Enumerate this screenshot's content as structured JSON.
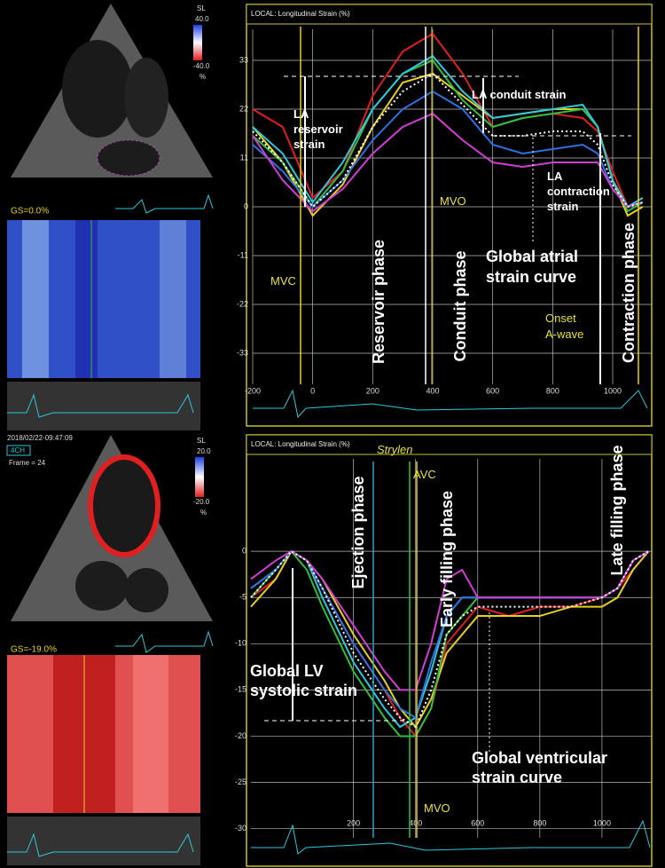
{
  "chart_data": [
    {
      "type": "line",
      "header": "LOCAL: Longitudinal Strain (%)",
      "x": [
        -200,
        -100,
        0,
        100,
        200,
        300,
        400,
        500,
        600,
        700,
        800,
        900,
        950,
        1000,
        1050,
        1100
      ],
      "series": [
        {
          "color": "#e02020",
          "values": [
            22,
            18,
            2,
            8,
            25,
            35,
            39,
            30,
            18,
            20,
            21,
            20,
            17,
            8,
            0,
            2
          ]
        },
        {
          "color": "#e8d020",
          "values": [
            18,
            10,
            -2,
            5,
            18,
            28,
            30,
            25,
            20,
            21,
            22,
            22,
            18,
            6,
            -2,
            0
          ]
        },
        {
          "color": "#30c040",
          "values": [
            16,
            10,
            0,
            8,
            22,
            30,
            33,
            24,
            18,
            20,
            21,
            22,
            18,
            6,
            -1,
            1
          ]
        },
        {
          "color": "#30c8d8",
          "values": [
            18,
            12,
            1,
            10,
            22,
            30,
            34,
            26,
            20,
            21,
            22,
            23,
            18,
            6,
            0,
            2
          ]
        },
        {
          "color": "#3070e0",
          "values": [
            14,
            8,
            0,
            6,
            15,
            22,
            26,
            22,
            14,
            12,
            13,
            14,
            12,
            4,
            0,
            1
          ]
        },
        {
          "color": "#d040d0",
          "values": [
            16,
            6,
            -1,
            4,
            12,
            18,
            21,
            15,
            10,
            9,
            10,
            10,
            10,
            4,
            0,
            1
          ]
        },
        {
          "color": "#ffffff",
          "line_style": "dotted",
          "values": [
            17,
            10,
            0,
            6,
            18,
            26,
            30,
            23,
            16,
            16,
            17,
            17,
            14,
            5,
            0,
            1
          ]
        }
      ],
      "xlim": [
        -200,
        1130
      ],
      "ylim": [
        -40,
        40
      ],
      "xticks": [
        -200,
        0,
        200,
        400,
        600,
        800,
        1000
      ],
      "yticks": [
        33,
        22,
        11,
        0,
        -11,
        -22,
        -33
      ],
      "grid": true,
      "annotations": [
        [
          "LA",
          "reservoir",
          "strain"
        ],
        [
          "LA conduit strain"
        ],
        [
          "LA",
          "contraction",
          "strain"
        ],
        [
          "Global atrial",
          "strain curve"
        ],
        [
          "MVC"
        ],
        [
          "MVO"
        ],
        [
          "Onset",
          "A-wave"
        ],
        [
          "Reservoir phase"
        ],
        [
          "Conduit phase"
        ],
        [
          "Contraction phase"
        ]
      ]
    },
    {
      "type": "line",
      "header": "LOCAL: Longitudinal Strain (%)",
      "x": [
        -130,
        -50,
        0,
        50,
        100,
        200,
        300,
        350,
        400,
        450,
        500,
        550,
        600,
        700,
        800,
        900,
        1000,
        1050,
        1100,
        1150
      ],
      "series": [
        {
          "color": "#e02020",
          "values": [
            -5,
            -3,
            0,
            -1,
            -4,
            -10,
            -15,
            -18,
            -20,
            -17,
            -10,
            -8,
            -6,
            -7,
            -6,
            -6,
            -5,
            -4,
            -2,
            0
          ]
        },
        {
          "color": "#e8d020",
          "values": [
            -6,
            -3,
            0,
            -1,
            -3,
            -9,
            -14,
            -17,
            -19,
            -16,
            -11,
            -9,
            -7,
            -7,
            -7,
            -6,
            -6,
            -5,
            -2,
            0
          ]
        },
        {
          "color": "#30c040",
          "values": [
            -5,
            -2,
            0,
            -2,
            -6,
            -13,
            -18,
            -20,
            -20,
            -17,
            -9,
            -7,
            -5,
            -5,
            -5,
            -5,
            -5,
            -4,
            -1,
            0
          ]
        },
        {
          "color": "#30c8d8",
          "values": [
            -4,
            -2,
            0,
            -1,
            -5,
            -12,
            -17,
            -19,
            -18,
            -13,
            -7,
            -5,
            -5,
            -5,
            -5,
            -5,
            -5,
            -4,
            -1,
            0
          ]
        },
        {
          "color": "#3070e0",
          "values": [
            -4,
            -2,
            0,
            -1,
            -4,
            -10,
            -15,
            -17,
            -18,
            -12,
            -7,
            -5,
            -5,
            -5,
            -5,
            -5,
            -5,
            -4,
            -1,
            0
          ]
        },
        {
          "color": "#d040d0",
          "values": [
            -3,
            -1,
            0,
            -1,
            -3,
            -8,
            -13,
            -15,
            -15,
            -10,
            -3,
            -2,
            -5,
            -5,
            -5,
            -5,
            -5,
            -4,
            -1,
            0
          ]
        },
        {
          "color": "#ffffff",
          "line_style": "dotted",
          "values": [
            -5,
            -2,
            0,
            -1,
            -4,
            -11,
            -16,
            -18,
            -19,
            -15,
            -9,
            -7,
            -6,
            -6,
            -6,
            -6,
            -5,
            -4,
            -1,
            0
          ]
        }
      ],
      "xlim": [
        -130,
        1160
      ],
      "ylim": [
        -31,
        10
      ],
      "xticks": [
        200,
        400,
        600,
        800,
        1000
      ],
      "yticks": [
        0,
        -5,
        -10,
        -15,
        -20,
        -25,
        -30
      ],
      "grid": true,
      "annotations": [
        [
          "Ejection phase"
        ],
        [
          "Early filling phase"
        ],
        [
          "Late filling phase"
        ],
        [
          "Global LV",
          "systolic strain"
        ],
        [
          "Global ventricular",
          "strain curve"
        ],
        [
          "MVO"
        ],
        [
          "AVC"
        ],
        [
          "Strylen"
        ]
      ]
    }
  ],
  "left_panels": {
    "top": {
      "scale_name": "SL",
      "scale_max": "40.0",
      "scale_min": "-40.0",
      "unit": "%",
      "global_strain": "GS=0.0%"
    },
    "bottom": {
      "timestamp": "2018/02/22-09:47:09",
      "view": "4CH",
      "frame": "Frame = 24",
      "scale_name": "SL",
      "scale_max": "20.0",
      "scale_min": "-20.0",
      "unit": "%",
      "global_strain": "GS=-19.0%"
    }
  }
}
